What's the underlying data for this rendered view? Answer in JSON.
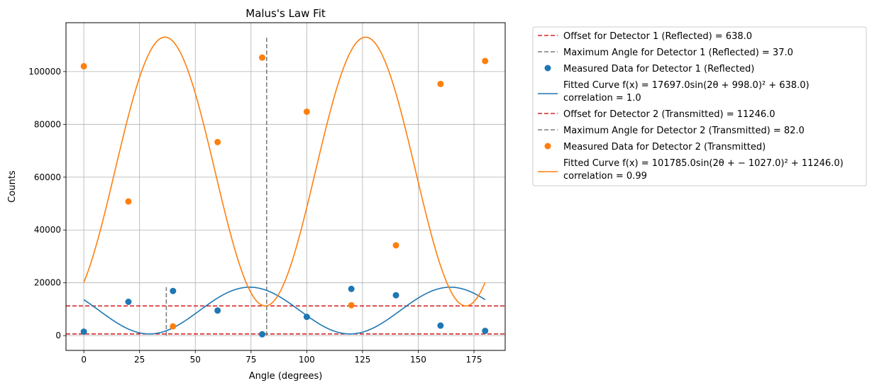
{
  "chart_data": {
    "type": "scatter",
    "title": "Malus's Law Fit",
    "xlabel": "Angle (degrees)",
    "ylabel": "Counts",
    "xlim": [
      -8,
      189
    ],
    "ylim": [
      -5600,
      118500
    ],
    "x_ticks": [
      0,
      25,
      50,
      75,
      100,
      125,
      150,
      175
    ],
    "y_ticks": [
      0,
      20000,
      40000,
      60000,
      80000,
      100000
    ],
    "x_tick_labels": [
      "0",
      "25",
      "50",
      "75",
      "100",
      "125",
      "150",
      "175"
    ],
    "y_tick_labels": [
      "0",
      "20000",
      "40000",
      "60000",
      "80000",
      "100000"
    ],
    "grid": true,
    "legend_position": "outside-right",
    "colors": {
      "reflected": "#1f77b4",
      "transmitted": "#ff7f0e",
      "offset": "#d62728",
      "max_angle": "#7f7f7f",
      "grid": "#b0b0b0"
    },
    "legend": [
      {
        "text": "Offset for Detector 1 (Reflected) = 638.0",
        "style": "dashed",
        "color": "#d62728"
      },
      {
        "text": "Maximum Angle for Detector 1 (Reflected) = 37.0",
        "style": "dashed",
        "color": "#7f7f7f"
      },
      {
        "text": "Measured Data for Detector 1 (Reflected)",
        "style": "marker",
        "color": "#1f77b4"
      },
      {
        "text": "Fitted Curve f(x) = 17697.0sin(2θ + 998.0)² + 638.0)",
        "text2": " correlation = 1.0",
        "style": "line",
        "color": "#1f77b4"
      },
      {
        "text": "Offset for Detector 2 (Transmitted) = 11246.0",
        "style": "dashed",
        "color": "#d62728"
      },
      {
        "text": "Maximum Angle for Detector 2 (Transmitted) = 82.0",
        "style": "dashed",
        "color": "#7f7f7f"
      },
      {
        "text": "Measured Data for Detector 2 (Transmitted)",
        "style": "marker",
        "color": "#ff7f0e"
      },
      {
        "text": "Fitted Curve f(x) = 101785.0sin(2θ + − 1027.0)² + 11246.0)",
        "text2": " correlation = 0.99",
        "style": "line",
        "color": "#ff7f0e"
      }
    ],
    "series": [
      {
        "name": "Measured Data for Detector 1 (Reflected)",
        "kind": "scatter",
        "color": "#1f77b4",
        "x": [
          0,
          20,
          40,
          60,
          80,
          100,
          120,
          140,
          160,
          180
        ],
        "y": [
          1500,
          12800,
          16900,
          9500,
          500,
          7100,
          17700,
          15300,
          3800,
          1800
        ]
      },
      {
        "name": "Measured Data for Detector 2 (Transmitted)",
        "kind": "scatter",
        "color": "#ff7f0e",
        "x": [
          0,
          20,
          40,
          60,
          80,
          100,
          120,
          140,
          160,
          180
        ],
        "y": [
          102000,
          50800,
          3500,
          73300,
          105300,
          84800,
          11500,
          34200,
          95300,
          104000
        ]
      },
      {
        "name": "Fitted Curve f(x) = 17697.0sin(2θ + 998.0)² + 638.0)",
        "kind": "fit",
        "color": "#1f77b4",
        "amplitude": 17697.0,
        "phase": 998.0,
        "offset": 638.0,
        "x_range": [
          0,
          180
        ]
      },
      {
        "name": "Fitted Curve f(x) = 101785.0sin(2θ + − 1027.0)² + 11246.0)",
        "kind": "fit",
        "color": "#ff7f0e",
        "amplitude": 101785.0,
        "phase": -1027.0,
        "offset": 11246.0,
        "x_range": [
          0,
          180
        ]
      }
    ],
    "offset_lines": [
      {
        "name": "Offset for Detector 1 (Reflected) = 638.0",
        "y": 638.0,
        "color": "#d62728"
      },
      {
        "name": "Offset for Detector 2 (Transmitted) = 11246.0",
        "y": 11246.0,
        "color": "#d62728"
      }
    ],
    "max_angle_lines": [
      {
        "name": "Maximum Angle for Detector 1 (Reflected) = 37.0",
        "x": 37.0,
        "y_top": 18335,
        "color": "#7f7f7f"
      },
      {
        "name": "Maximum Angle for Detector 2 (Transmitted) = 82.0",
        "x": 82.0,
        "y_top": 113031,
        "color": "#7f7f7f"
      }
    ]
  }
}
